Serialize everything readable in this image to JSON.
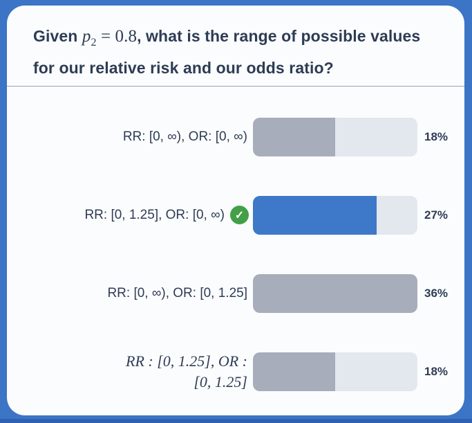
{
  "question": {
    "prefix": "Given ",
    "math_var": "p",
    "math_sub": "2",
    "math_rest": " = 0.8",
    "suffix": ", what is the range of possible values for our relative risk and our odds ratio?"
  },
  "options": [
    {
      "lines": [
        "RR: [0, ∞), OR: [0, ∞)"
      ],
      "percent": 18,
      "percent_label": "18%",
      "correct": false
    },
    {
      "lines": [
        "RR: [0, 1.25], OR: [0, ∞)"
      ],
      "percent": 27,
      "percent_label": "27%",
      "correct": true
    },
    {
      "lines": [
        "RR: [0, ∞), OR: [0, 1.25]"
      ],
      "percent": 36,
      "percent_label": "36%",
      "correct": false
    },
    {
      "lines": [
        "RR : [0, 1.25], OR :",
        "[0, 1.25]"
      ],
      "percent": 18,
      "percent_label": "18%",
      "correct": false
    }
  ],
  "icons": {
    "correct_checkmark": "✓"
  },
  "colors": {
    "frame_blue": "#3C74C6",
    "bottom_strip_blue": "#2E62B1",
    "card_background": "#FBFCFE",
    "bar_track": "#E3E7EE",
    "bar_incorrect": "#A7ADBA",
    "bar_correct": "#3E78C8",
    "checkmark_green": "#43A047",
    "text_dark": "#2E3C54"
  },
  "chart_data": {
    "type": "bar",
    "categories": [
      "RR: [0, ∞), OR: [0, ∞)",
      "RR: [0, 1.25], OR: [0, ∞)",
      "RR: [0, ∞), OR: [0, 1.25]",
      "RR : [0, 1.25], OR : [0, 1.25]"
    ],
    "values": [
      18,
      27,
      36,
      18
    ],
    "correct_index": 1,
    "title": "Given p2 = 0.8, what is the range of possible values for our relative risk and our odds ratio?",
    "xlabel": "",
    "ylabel": "",
    "layout_hints": "horizontal bars, widths normalized to max value (36%), correct answer highlighted blue with green checkmark"
  }
}
